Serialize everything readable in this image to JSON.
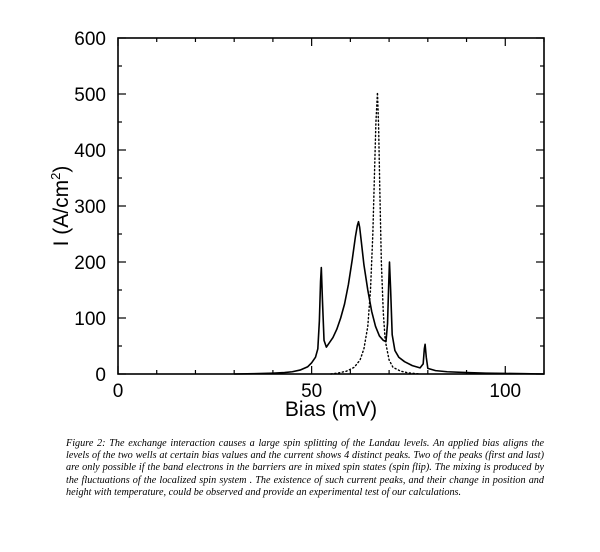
{
  "chart_data": {
    "type": "line",
    "xlabel": "Bias (mV)",
    "ylabel_main": "I (A/cm",
    "ylabel_sup": "2",
    "ylabel_close": ")",
    "xlim": [
      0,
      110
    ],
    "ylim": [
      0,
      600
    ],
    "x_ticks": [
      "0",
      "50",
      "100"
    ],
    "y_ticks": [
      "0",
      "100",
      "200",
      "300",
      "400",
      "500",
      "600"
    ],
    "x_tick_values": [
      0,
      50,
      100
    ],
    "y_tick_values": [
      0,
      100,
      200,
      300,
      400,
      500,
      600
    ],
    "grid": false,
    "legend": "none",
    "series": [
      {
        "style": "solid",
        "points": [
          [
            30,
            0
          ],
          [
            35,
            0.5
          ],
          [
            40,
            1.5
          ],
          [
            43,
            2.5
          ],
          [
            45,
            4
          ],
          [
            47,
            7
          ],
          [
            49,
            13
          ],
          [
            50,
            20
          ],
          [
            51,
            30
          ],
          [
            51.6,
            45
          ],
          [
            52,
            95
          ],
          [
            52.3,
            165
          ],
          [
            52.5,
            190
          ],
          [
            52.8,
            130
          ],
          [
            53.2,
            60
          ],
          [
            53.8,
            48
          ],
          [
            54.5,
            55
          ],
          [
            55.5,
            65
          ],
          [
            56.5,
            80
          ],
          [
            57.5,
            100
          ],
          [
            58.5,
            125
          ],
          [
            59.5,
            160
          ],
          [
            60.5,
            205
          ],
          [
            61.3,
            245
          ],
          [
            61.8,
            265
          ],
          [
            62.1,
            272
          ],
          [
            62.4,
            262
          ],
          [
            62.8,
            238
          ],
          [
            63.5,
            195
          ],
          [
            64.5,
            150
          ],
          [
            65.5,
            112
          ],
          [
            66.5,
            85
          ],
          [
            67.5,
            68
          ],
          [
            68.5,
            60
          ],
          [
            69.2,
            58
          ],
          [
            69.6,
            90
          ],
          [
            69.9,
            160
          ],
          [
            70.1,
            200
          ],
          [
            70.4,
            150
          ],
          [
            70.8,
            70
          ],
          [
            71.5,
            42
          ],
          [
            72.5,
            30
          ],
          [
            74,
            22
          ],
          [
            76,
            15
          ],
          [
            78,
            11
          ],
          [
            78.8,
            18
          ],
          [
            79.1,
            45
          ],
          [
            79.3,
            53
          ],
          [
            79.6,
            30
          ],
          [
            80,
            10
          ],
          [
            82,
            6
          ],
          [
            85,
            4
          ],
          [
            90,
            2.5
          ],
          [
            95,
            1.5
          ],
          [
            100,
            1
          ],
          [
            105,
            0.5
          ],
          [
            110,
            0
          ]
        ]
      },
      {
        "style": "dotted",
        "points": [
          [
            55,
            0
          ],
          [
            57,
            2
          ],
          [
            59,
            5
          ],
          [
            61,
            12
          ],
          [
            62.5,
            25
          ],
          [
            63.5,
            45
          ],
          [
            64.5,
            85
          ],
          [
            65.2,
            150
          ],
          [
            65.8,
            250
          ],
          [
            66.2,
            350
          ],
          [
            66.6,
            450
          ],
          [
            67,
            503
          ],
          [
            67.3,
            440
          ],
          [
            67.6,
            330
          ],
          [
            68,
            200
          ],
          [
            68.5,
            110
          ],
          [
            69,
            60
          ],
          [
            70,
            25
          ],
          [
            71,
            12
          ],
          [
            73,
            5
          ],
          [
            75,
            2
          ],
          [
            78,
            0
          ]
        ]
      }
    ]
  },
  "caption": "Figure 2: The exchange interaction causes a large spin splitting of the Landau levels. An applied bias aligns the levels of the two wells at certain bias values and the current shows 4 distinct peaks. Two of the peaks (first and last) are only possible if the band electrons in the barriers are in mixed spin states (spin flip). The mixing is produced by the fluctuations of the localized spin system . The existence of such current peaks, and their change in position and height with temperature, could be observed and provide an experimental test of our calculations."
}
